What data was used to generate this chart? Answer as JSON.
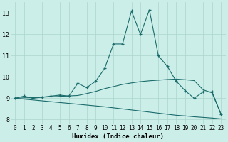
{
  "xlabel": "Humidex (Indice chaleur)",
  "background_color": "#cceee8",
  "grid_color": "#aad4cc",
  "line_color": "#1a6b6b",
  "xlim": [
    -0.5,
    23.5
  ],
  "ylim": [
    7.8,
    13.5
  ],
  "xticks": [
    0,
    1,
    2,
    3,
    4,
    5,
    6,
    7,
    8,
    9,
    10,
    11,
    12,
    13,
    14,
    15,
    16,
    17,
    18,
    19,
    20,
    21,
    22,
    23
  ],
  "yticks": [
    8,
    9,
    10,
    11,
    12,
    13
  ],
  "main_y": [
    9.0,
    9.1,
    9.0,
    9.05,
    9.1,
    9.15,
    9.1,
    9.7,
    9.5,
    9.8,
    10.4,
    11.55,
    11.55,
    13.1,
    12.0,
    13.15,
    11.0,
    10.5,
    9.8,
    9.35,
    9.0,
    9.3,
    9.3,
    8.25
  ],
  "upper_y": [
    9.0,
    9.02,
    9.03,
    9.05,
    9.07,
    9.09,
    9.11,
    9.13,
    9.22,
    9.32,
    9.45,
    9.55,
    9.65,
    9.72,
    9.78,
    9.82,
    9.85,
    9.88,
    9.9,
    9.87,
    9.83,
    9.4,
    9.25,
    8.25
  ],
  "lower_y": [
    9.0,
    8.96,
    8.92,
    8.88,
    8.84,
    8.8,
    8.76,
    8.72,
    8.68,
    8.64,
    8.6,
    8.55,
    8.5,
    8.45,
    8.4,
    8.35,
    8.3,
    8.25,
    8.2,
    8.17,
    8.13,
    8.1,
    8.07,
    8.03
  ]
}
